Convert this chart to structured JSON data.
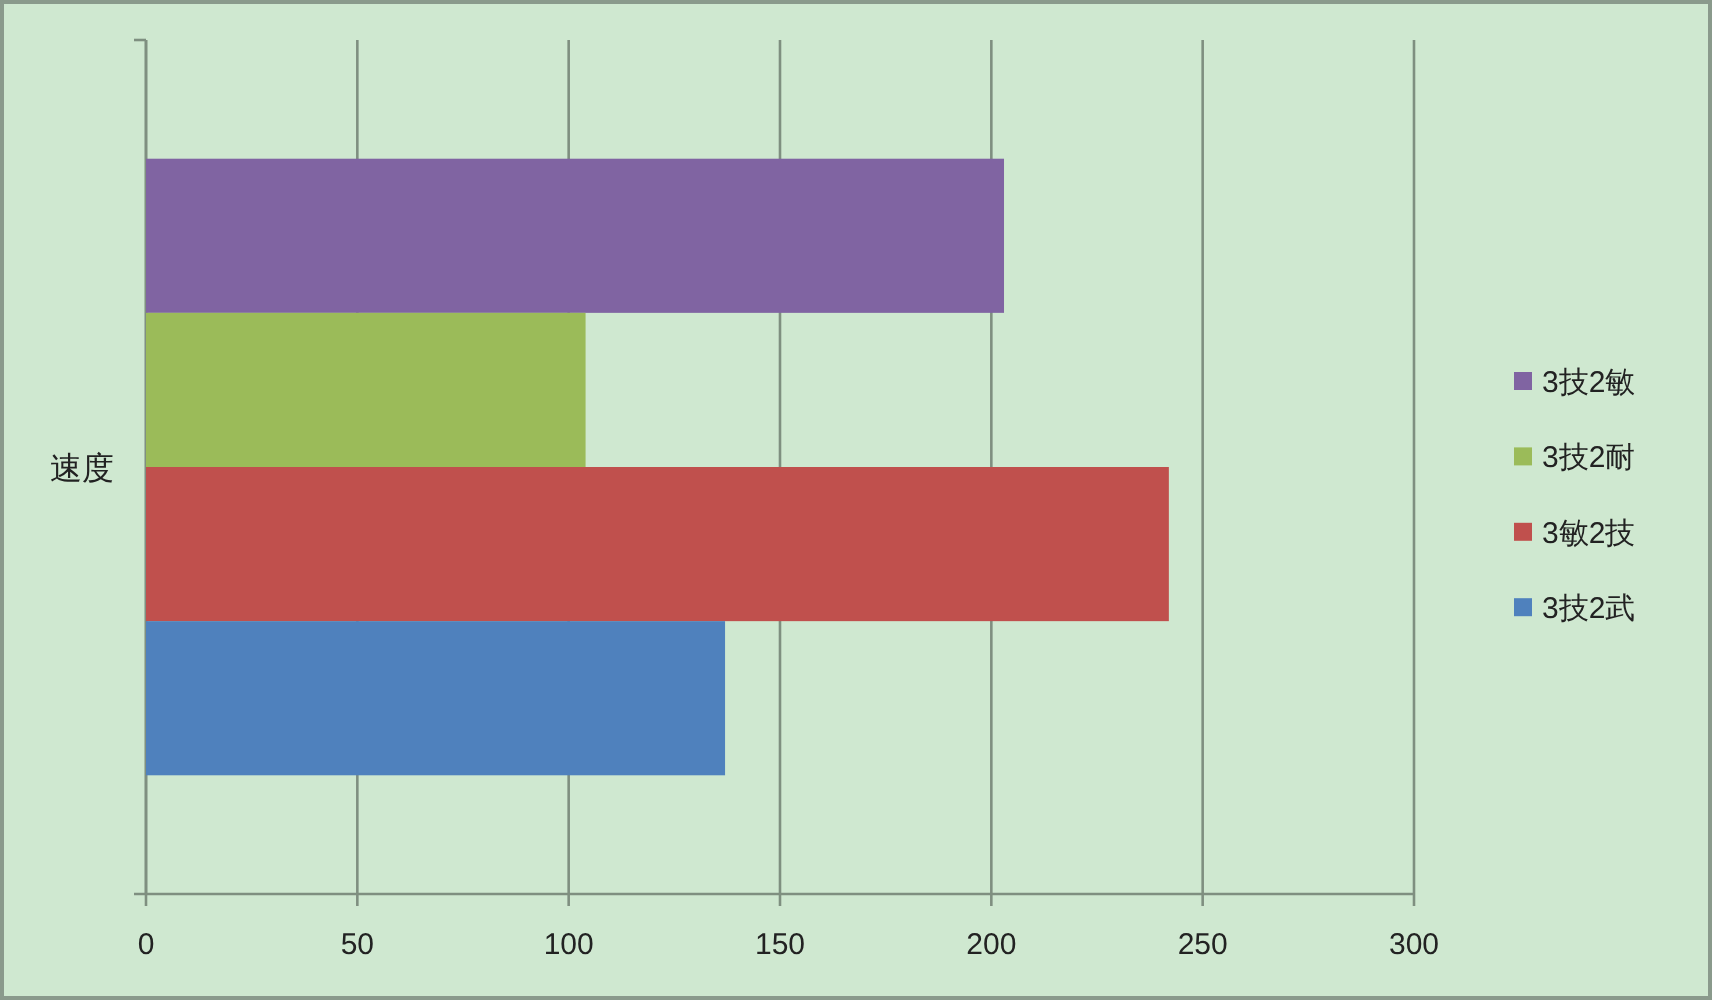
{
  "chart_data": {
    "type": "bar",
    "orientation": "horizontal",
    "categories": [
      "速度"
    ],
    "series": [
      {
        "name": "3技2敏",
        "color": "#8064a2",
        "values": [
          203
        ]
      },
      {
        "name": "3技2耐",
        "color": "#9bbb59",
        "values": [
          104
        ]
      },
      {
        "name": "3敏2技",
        "color": "#c0504d",
        "values": [
          242
        ]
      },
      {
        "name": "3技2武",
        "color": "#4f81bd",
        "values": [
          137
        ]
      }
    ],
    "xlim": [
      0,
      300
    ],
    "xticks": [
      0,
      50,
      100,
      150,
      200,
      250,
      300
    ],
    "grid": "x",
    "legend": "right"
  }
}
